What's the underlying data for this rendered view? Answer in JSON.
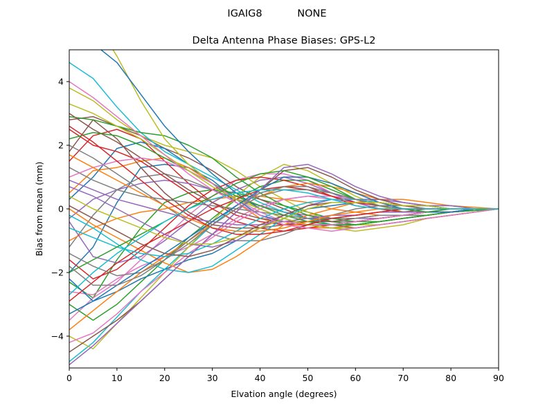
{
  "figure": {
    "suptitle": "IGAIG8           NONE"
  },
  "chart_data": {
    "type": "line",
    "title": "Delta Antenna Phase Biases: GPS-L2",
    "xlabel": "Elvation angle (degrees)",
    "ylabel": "Bias from mean (mm)",
    "xlim": [
      0,
      90
    ],
    "ylim": [
      -5,
      5
    ],
    "xticks": [
      0,
      10,
      20,
      30,
      40,
      50,
      60,
      70,
      80,
      90
    ],
    "yticks": [
      -4,
      -2,
      0,
      2,
      4
    ],
    "grid": false,
    "legend": "none",
    "x": [
      0,
      5,
      10,
      15,
      20,
      25,
      30,
      35,
      40,
      45,
      50,
      55,
      60,
      65,
      70,
      75,
      80,
      85,
      90
    ],
    "colors": [
      "#1f77b4",
      "#ff7f0e",
      "#2ca02c",
      "#d62728",
      "#9467bd",
      "#8c564b",
      "#e377c2",
      "#7f7f7f",
      "#bcbd22",
      "#17becf"
    ],
    "series": [
      {
        "values": [
          -2.0,
          -1.2,
          0.2,
          1.3,
          1.4,
          1.3,
          0.9,
          0.3,
          -0.2,
          -0.4,
          -0.5,
          -0.5,
          -0.4,
          -0.3,
          -0.2,
          -0.1,
          -0.1,
          0.0,
          0.0
        ]
      },
      {
        "values": [
          0.5,
          1.2,
          1.3,
          1.5,
          1.6,
          1.3,
          0.8,
          0.2,
          -0.3,
          -0.5,
          -0.6,
          -0.6,
          -0.5,
          -0.4,
          -0.3,
          -0.2,
          -0.1,
          -0.05,
          0.0
        ]
      },
      {
        "values": [
          -2.3,
          -2.8,
          -1.6,
          -0.6,
          0.2,
          0.5,
          0.6,
          0.5,
          0.3,
          0.1,
          -0.1,
          -0.3,
          -0.4,
          -0.4,
          -0.3,
          -0.2,
          -0.1,
          -0.05,
          0.0
        ]
      },
      {
        "values": [
          1.5,
          2.3,
          2.5,
          2.2,
          1.5,
          0.8,
          0.2,
          -0.2,
          -0.4,
          -0.5,
          -0.5,
          -0.5,
          -0.5,
          -0.4,
          -0.3,
          -0.2,
          -0.1,
          -0.05,
          0.0
        ]
      },
      {
        "values": [
          -0.3,
          0.3,
          0.6,
          0.8,
          0.9,
          0.8,
          0.6,
          0.3,
          0.1,
          -0.1,
          -0.2,
          -0.3,
          -0.3,
          -0.3,
          -0.2,
          -0.1,
          -0.1,
          0.0,
          0.0
        ]
      },
      {
        "values": [
          2.8,
          2.9,
          2.6,
          2.3,
          1.9,
          1.6,
          1.2,
          0.7,
          0.3,
          0.0,
          -0.3,
          -0.5,
          -0.6,
          -0.5,
          -0.4,
          -0.3,
          -0.2,
          -0.1,
          0.0
        ]
      },
      {
        "values": [
          -3.5,
          -2.8,
          -2.3,
          -1.6,
          -0.9,
          -0.2,
          0.4,
          0.9,
          1.1,
          1.1,
          0.9,
          0.5,
          0.2,
          0.0,
          -0.1,
          -0.1,
          -0.1,
          0.0,
          0.0
        ]
      },
      {
        "values": [
          -1.2,
          -0.2,
          0.6,
          1.0,
          1.1,
          0.9,
          0.6,
          0.3,
          0.1,
          -0.1,
          -0.3,
          -0.4,
          -0.4,
          -0.3,
          -0.2,
          -0.2,
          -0.1,
          -0.05,
          0.0
        ]
      },
      {
        "values": [
          3.8,
          3.4,
          2.8,
          2.3,
          2.0,
          1.8,
          1.6,
          1.2,
          0.7,
          0.3,
          -0.1,
          -0.4,
          -0.5,
          -0.5,
          -0.4,
          -0.3,
          -0.2,
          -0.1,
          0.0
        ]
      },
      {
        "values": [
          -4.8,
          -4.2,
          -3.4,
          -2.6,
          -1.9,
          -1.2,
          -0.5,
          0.1,
          0.5,
          0.7,
          0.6,
          0.4,
          0.2,
          0.0,
          -0.1,
          -0.1,
          -0.1,
          0.0,
          0.0
        ]
      },
      {
        "values": [
          0.3,
          1.0,
          1.9,
          2.1,
          1.9,
          1.4,
          0.8,
          0.2,
          -0.2,
          -0.4,
          -0.5,
          -0.5,
          -0.4,
          -0.3,
          -0.2,
          -0.1,
          -0.1,
          0.0,
          0.0
        ]
      },
      {
        "values": [
          -1.0,
          -0.6,
          -0.3,
          -0.1,
          0.0,
          0.2,
          0.3,
          0.4,
          0.4,
          0.3,
          0.2,
          0.0,
          -0.1,
          -0.2,
          -0.2,
          -0.1,
          -0.1,
          0.0,
          0.0
        ]
      },
      {
        "values": [
          -3.0,
          -3.5,
          -3.0,
          -2.3,
          -1.6,
          -0.9,
          -0.3,
          0.3,
          0.7,
          0.9,
          0.9,
          0.6,
          0.3,
          0.1,
          -0.1,
          -0.1,
          -0.1,
          0.0,
          0.0
        ]
      },
      {
        "values": [
          2.5,
          2.0,
          1.8,
          1.5,
          1.0,
          0.5,
          0.0,
          -0.4,
          -0.6,
          -0.7,
          -0.6,
          -0.5,
          -0.4,
          -0.3,
          -0.2,
          -0.1,
          -0.1,
          0.0,
          0.0
        ]
      },
      {
        "values": [
          -0.4,
          -1.5,
          -1.7,
          -1.5,
          -1.0,
          -0.4,
          0.2,
          0.6,
          0.9,
          1.0,
          0.8,
          0.5,
          0.2,
          0.0,
          -0.1,
          -0.1,
          -0.1,
          0.0,
          0.0
        ]
      },
      {
        "values": [
          1.8,
          2.8,
          2.2,
          1.3,
          0.5,
          -0.1,
          -0.5,
          -0.6,
          -0.6,
          -0.5,
          -0.4,
          -0.3,
          -0.2,
          -0.1,
          -0.1,
          0.0,
          0.0,
          0.0,
          0.0
        ]
      },
      {
        "values": [
          -2.6,
          -2.7,
          -2.2,
          -1.8,
          -1.5,
          -1.2,
          -0.8,
          -0.3,
          0.1,
          0.3,
          0.4,
          0.3,
          0.2,
          0.1,
          0.0,
          0.0,
          0.0,
          0.0,
          0.0
        ]
      },
      {
        "values": [
          2.0,
          1.6,
          1.1,
          0.6,
          0.1,
          -0.4,
          -0.8,
          -1.0,
          -1.0,
          -0.8,
          -0.5,
          -0.2,
          0.0,
          0.1,
          0.1,
          0.1,
          0.0,
          0.0,
          0.0
        ]
      },
      {
        "values": [
          -4.0,
          -4.4,
          -3.6,
          -2.8,
          -2.0,
          -1.2,
          -0.4,
          0.4,
          1.0,
          1.4,
          1.2,
          0.8,
          0.4,
          0.1,
          -0.1,
          -0.1,
          -0.1,
          0.0,
          0.0
        ]
      },
      {
        "values": [
          4.6,
          4.1,
          3.2,
          2.4,
          1.8,
          1.4,
          1.0,
          0.6,
          0.2,
          -0.1,
          -0.3,
          -0.5,
          -0.5,
          -0.4,
          -0.3,
          -0.2,
          -0.1,
          -0.05,
          0.0
        ]
      },
      {
        "values": [
          -2.2,
          -2.9,
          -2.6,
          -2.2,
          -1.9,
          -1.6,
          -1.4,
          -1.0,
          -0.6,
          -0.3,
          0.0,
          0.1,
          0.2,
          0.2,
          0.1,
          0.1,
          0.0,
          0.0,
          0.0
        ]
      },
      {
        "values": [
          0.0,
          -0.5,
          -0.9,
          -1.3,
          -1.7,
          -2.0,
          -1.9,
          -1.5,
          -1.0,
          -0.5,
          -0.2,
          0.0,
          0.2,
          0.3,
          0.3,
          0.2,
          0.1,
          0.05,
          0.0
        ]
      },
      {
        "values": [
          2.9,
          2.8,
          2.6,
          2.4,
          2.3,
          2.0,
          1.6,
          1.0,
          0.5,
          0.1,
          -0.2,
          -0.4,
          -0.5,
          -0.4,
          -0.3,
          -0.2,
          -0.1,
          -0.05,
          0.0
        ]
      },
      {
        "values": [
          -1.6,
          -2.2,
          -1.9,
          -1.3,
          -0.6,
          0.1,
          0.6,
          0.9,
          1.0,
          0.9,
          0.7,
          0.4,
          0.1,
          0.0,
          -0.1,
          -0.1,
          -0.1,
          0.0,
          0.0
        ]
      },
      {
        "values": [
          0.9,
          0.6,
          0.3,
          0.1,
          -0.1,
          -0.3,
          -0.4,
          -0.5,
          -0.5,
          -0.4,
          -0.3,
          -0.2,
          -0.2,
          -0.1,
          -0.1,
          -0.1,
          0.0,
          0.0,
          0.0
        ]
      },
      {
        "values": [
          3.0,
          2.5,
          2.1,
          1.6,
          1.1,
          0.6,
          0.2,
          -0.1,
          -0.3,
          -0.4,
          -0.4,
          -0.4,
          -0.3,
          -0.2,
          -0.2,
          -0.1,
          -0.1,
          0.0,
          0.0
        ]
      },
      {
        "values": [
          -4.2,
          -3.9,
          -3.3,
          -2.6,
          -2.0,
          -1.4,
          -0.9,
          -0.4,
          0.0,
          0.3,
          0.4,
          0.4,
          0.3,
          0.2,
          0.1,
          0.0,
          0.0,
          0.0,
          0.0
        ]
      },
      {
        "values": [
          1.3,
          0.9,
          0.6,
          0.4,
          0.3,
          0.2,
          0.1,
          0.0,
          -0.1,
          -0.2,
          -0.3,
          -0.3,
          -0.3,
          -0.2,
          -0.2,
          -0.1,
          -0.1,
          0.0,
          0.0
        ]
      },
      {
        "values": [
          6.5,
          6.0,
          4.8,
          3.4,
          2.2,
          1.4,
          0.8,
          0.4,
          0.0,
          -0.3,
          -0.5,
          -0.6,
          -0.7,
          -0.6,
          -0.5,
          -0.3,
          -0.2,
          -0.1,
          0.0
        ]
      },
      {
        "values": [
          -0.2,
          -0.6,
          -1.1,
          -1.6,
          -1.9,
          -2.0,
          -1.8,
          -1.3,
          -0.8,
          -0.3,
          0.1,
          0.3,
          0.3,
          0.3,
          0.2,
          0.1,
          0.1,
          0.0,
          0.0
        ]
      },
      {
        "values": [
          5.5,
          5.2,
          4.6,
          3.6,
          2.6,
          1.8,
          1.1,
          0.5,
          0.0,
          -0.3,
          -0.5,
          -0.6,
          -0.6,
          -0.5,
          -0.4,
          -0.3,
          -0.2,
          -0.1,
          0.0
        ]
      },
      {
        "values": [
          -3.8,
          -3.2,
          -2.6,
          -2.0,
          -1.5,
          -1.0,
          -0.5,
          0.0,
          0.4,
          0.7,
          0.8,
          0.7,
          0.5,
          0.3,
          0.1,
          0.0,
          0.0,
          0.0,
          0.0
        ]
      },
      {
        "values": [
          2.2,
          2.4,
          2.3,
          2.0,
          1.6,
          1.2,
          0.8,
          0.4,
          0.1,
          -0.2,
          -0.4,
          -0.5,
          -0.5,
          -0.4,
          -0.3,
          -0.2,
          -0.1,
          0.0,
          0.0
        ]
      },
      {
        "values": [
          -2.9,
          -2.3,
          -1.7,
          -1.2,
          -0.8,
          -0.4,
          0.0,
          0.3,
          0.6,
          0.7,
          0.6,
          0.4,
          0.2,
          0.1,
          0.0,
          0.0,
          0.0,
          0.0,
          0.0
        ]
      },
      {
        "values": [
          0.7,
          0.4,
          0.0,
          -0.4,
          -0.8,
          -1.1,
          -1.2,
          -1.0,
          -0.6,
          -0.2,
          0.1,
          0.3,
          0.3,
          0.3,
          0.2,
          0.1,
          0.1,
          0.0,
          0.0
        ]
      },
      {
        "values": [
          -4.5,
          -4.0,
          -3.5,
          -2.9,
          -2.2,
          -1.5,
          -0.8,
          -0.1,
          0.6,
          1.2,
          1.3,
          1.0,
          0.6,
          0.3,
          0.1,
          0.0,
          0.0,
          0.0,
          0.0
        ]
      },
      {
        "values": [
          1.0,
          1.3,
          1.5,
          1.6,
          1.5,
          1.2,
          0.8,
          0.3,
          -0.1,
          -0.4,
          -0.5,
          -0.5,
          -0.4,
          -0.3,
          -0.2,
          -0.1,
          -0.1,
          0.0,
          0.0
        ]
      },
      {
        "values": [
          -1.4,
          -1.8,
          -2.1,
          -2.0,
          -1.6,
          -1.0,
          -0.4,
          0.1,
          0.5,
          0.7,
          0.7,
          0.5,
          0.3,
          0.1,
          0.0,
          0.0,
          0.0,
          0.0,
          0.0
        ]
      },
      {
        "values": [
          3.3,
          3.0,
          2.6,
          2.2,
          1.7,
          1.2,
          0.7,
          0.3,
          0.0,
          -0.3,
          -0.5,
          -0.6,
          -0.6,
          -0.5,
          -0.4,
          -0.3,
          -0.2,
          -0.1,
          0.0
        ]
      },
      {
        "values": [
          -0.6,
          -0.9,
          -1.2,
          -1.4,
          -1.5,
          -1.4,
          -1.1,
          -0.7,
          -0.3,
          0.0,
          0.2,
          0.3,
          0.3,
          0.2,
          0.1,
          0.1,
          0.0,
          0.0,
          0.0
        ]
      },
      {
        "values": [
          -3.3,
          -2.9,
          -2.4,
          -1.9,
          -1.4,
          -0.9,
          -0.4,
          0.1,
          0.6,
          1.0,
          1.0,
          0.8,
          0.5,
          0.2,
          0.0,
          -0.1,
          -0.1,
          0.0,
          0.0
        ]
      },
      {
        "values": [
          1.7,
          1.3,
          0.9,
          0.5,
          0.1,
          -0.3,
          -0.6,
          -0.7,
          -0.7,
          -0.6,
          -0.4,
          -0.2,
          -0.1,
          0.0,
          0.0,
          0.0,
          0.0,
          0.0,
          0.0
        ]
      },
      {
        "values": [
          -2.0,
          -1.6,
          -1.2,
          -0.8,
          -0.4,
          0.0,
          0.4,
          0.8,
          1.1,
          1.2,
          1.0,
          0.7,
          0.3,
          0.1,
          0.0,
          -0.1,
          0.0,
          0.0,
          0.0
        ]
      },
      {
        "values": [
          2.6,
          2.1,
          1.5,
          0.9,
          0.3,
          -0.2,
          -0.6,
          -0.8,
          -0.8,
          -0.7,
          -0.5,
          -0.3,
          -0.2,
          -0.1,
          0.0,
          0.0,
          0.0,
          0.0,
          0.0
        ]
      },
      {
        "values": [
          -4.9,
          -4.3,
          -3.6,
          -2.9,
          -2.2,
          -1.5,
          -0.8,
          -0.1,
          0.6,
          1.3,
          1.4,
          1.1,
          0.7,
          0.4,
          0.2,
          0.1,
          0.0,
          0.0,
          0.0
        ]
      },
      {
        "values": [
          0.1,
          -0.3,
          -0.7,
          -1.1,
          -1.4,
          -1.5,
          -1.3,
          -0.9,
          -0.5,
          -0.2,
          0.1,
          0.2,
          0.2,
          0.2,
          0.1,
          0.1,
          0.0,
          0.0,
          0.0
        ]
      },
      {
        "values": [
          4.0,
          3.5,
          2.9,
          2.3,
          1.7,
          1.1,
          0.6,
          0.2,
          -0.2,
          -0.5,
          -0.6,
          -0.7,
          -0.6,
          -0.5,
          -0.4,
          -0.3,
          -0.2,
          -0.1,
          0.0
        ]
      },
      {
        "values": [
          -1.8,
          -2.4,
          -2.4,
          -2.1,
          -1.6,
          -1.1,
          -0.5,
          0.0,
          0.4,
          0.6,
          0.6,
          0.5,
          0.3,
          0.1,
          0.0,
          0.0,
          0.0,
          0.0,
          0.0
        ]
      },
      {
        "values": [
          0.4,
          0.0,
          -0.3,
          -0.6,
          -0.9,
          -1.1,
          -1.1,
          -0.9,
          -0.6,
          -0.3,
          0.0,
          0.2,
          0.2,
          0.2,
          0.1,
          0.1,
          0.0,
          0.0,
          0.0
        ]
      },
      {
        "values": [
          -2.7,
          -2.0,
          -1.4,
          -0.9,
          -0.4,
          0.0,
          0.3,
          0.5,
          0.6,
          0.6,
          0.5,
          0.3,
          0.1,
          0.0,
          0.0,
          0.0,
          0.0,
          0.0,
          0.0
        ]
      }
    ]
  }
}
